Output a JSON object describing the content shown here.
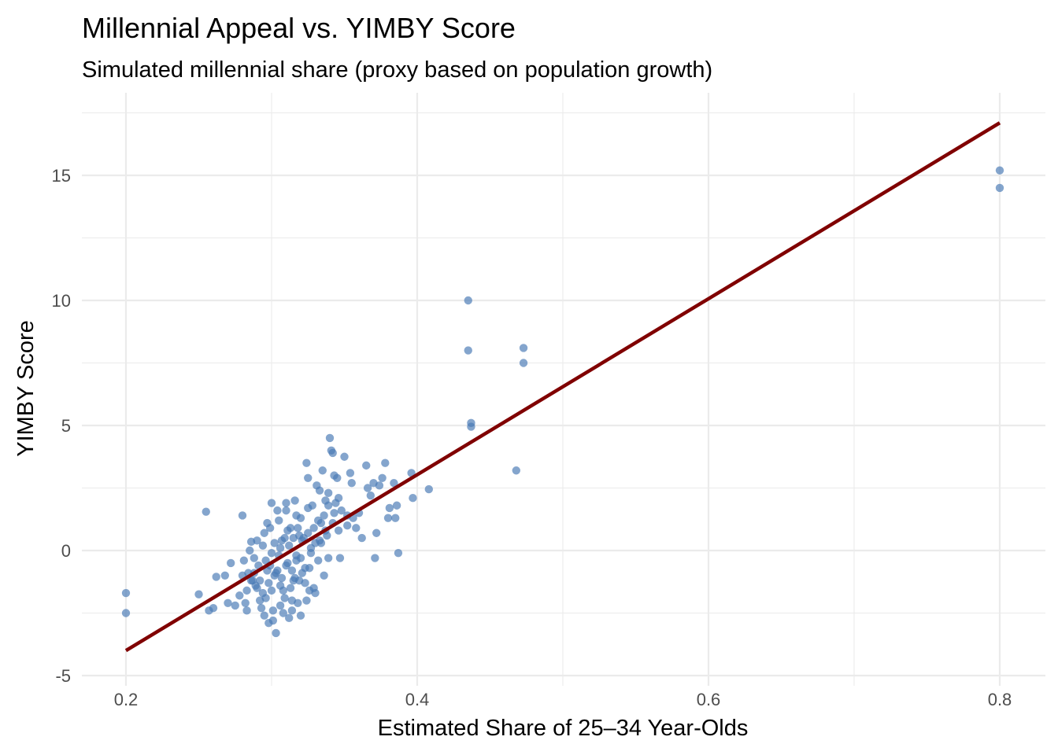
{
  "chart_data": {
    "type": "scatter",
    "title": "Millennial Appeal vs. YIMBY Score",
    "subtitle": "Simulated millennial share (proxy based on population growth)",
    "xlabel": "Estimated Share of 25–34 Year-Olds",
    "ylabel": "YIMBY Score",
    "xlim": [
      0.17,
      0.83
    ],
    "ylim": [
      -5,
      18
    ],
    "x_ticks": [
      0.2,
      0.4,
      0.6,
      0.8
    ],
    "x_tick_labels": [
      "0.2",
      "0.4",
      "0.6",
      "0.8"
    ],
    "y_ticks": [
      -5,
      0,
      5,
      10,
      15
    ],
    "y_tick_labels": [
      "-5",
      "0",
      "5",
      "10",
      "15"
    ],
    "grid": true,
    "legend": "none",
    "colors": {
      "points": "#4a7bb5",
      "trend": "#800000",
      "grid": "#ebebeb"
    },
    "trend_line": {
      "x": [
        0.2,
        0.8
      ],
      "y": [
        -4.0,
        17.1
      ]
    },
    "series": [
      {
        "values": [
          [
            0.2,
            -1.7
          ],
          [
            0.2,
            -2.5
          ],
          [
            0.255,
            1.55
          ],
          [
            0.25,
            -1.75
          ],
          [
            0.257,
            -2.4
          ],
          [
            0.26,
            -2.3
          ],
          [
            0.262,
            -1.05
          ],
          [
            0.27,
            -2.1
          ],
          [
            0.272,
            -0.5
          ],
          [
            0.275,
            -2.2
          ],
          [
            0.268,
            -1.0
          ],
          [
            0.28,
            1.4
          ],
          [
            0.278,
            -1.8
          ],
          [
            0.284,
            -0.9
          ],
          [
            0.286,
            0.35
          ],
          [
            0.288,
            -0.3
          ],
          [
            0.29,
            -1.5
          ],
          [
            0.292,
            -2.0
          ],
          [
            0.283,
            -2.4
          ],
          [
            0.287,
            -1.2
          ],
          [
            0.295,
            0.7
          ],
          [
            0.297,
            -0.8
          ],
          [
            0.298,
            -2.9
          ],
          [
            0.3,
            1.9
          ],
          [
            0.3,
            -0.1
          ],
          [
            0.302,
            -1.0
          ],
          [
            0.303,
            -3.3
          ],
          [
            0.305,
            1.2
          ],
          [
            0.306,
            -2.2
          ],
          [
            0.307,
            0.4
          ],
          [
            0.308,
            -1.6
          ],
          [
            0.31,
            1.6
          ],
          [
            0.311,
            -0.5
          ],
          [
            0.312,
            -2.7
          ],
          [
            0.313,
            0.9
          ],
          [
            0.315,
            -1.2
          ],
          [
            0.316,
            2.0
          ],
          [
            0.317,
            -0.2
          ],
          [
            0.318,
            -2.1
          ],
          [
            0.32,
            1.3
          ],
          [
            0.322,
            0.5
          ],
          [
            0.323,
            -1.3
          ],
          [
            0.324,
            3.5
          ],
          [
            0.325,
            2.9
          ],
          [
            0.326,
            -0.7
          ],
          [
            0.328,
            1.8
          ],
          [
            0.329,
            -1.5
          ],
          [
            0.33,
            0.3
          ],
          [
            0.331,
            2.6
          ],
          [
            0.332,
            -0.4
          ],
          [
            0.334,
            1.1
          ],
          [
            0.335,
            3.2
          ],
          [
            0.336,
            -1.0
          ],
          [
            0.337,
            2.0
          ],
          [
            0.338,
            0.6
          ],
          [
            0.34,
            4.5
          ],
          [
            0.341,
            4.0
          ],
          [
            0.342,
            3.9
          ],
          [
            0.343,
            3.0
          ],
          [
            0.344,
            1.9
          ],
          [
            0.345,
            2.9
          ],
          [
            0.346,
            0.8
          ],
          [
            0.347,
            -0.3
          ],
          [
            0.348,
            1.6
          ],
          [
            0.35,
            3.75
          ],
          [
            0.352,
            1.4
          ],
          [
            0.354,
            3.1
          ],
          [
            0.355,
            2.7
          ],
          [
            0.356,
            1.3
          ],
          [
            0.36,
            1.5
          ],
          [
            0.362,
            0.5
          ],
          [
            0.365,
            3.4
          ],
          [
            0.366,
            2.5
          ],
          [
            0.368,
            2.2
          ],
          [
            0.37,
            2.7
          ],
          [
            0.371,
            -0.3
          ],
          [
            0.372,
            0.7
          ],
          [
            0.374,
            2.6
          ],
          [
            0.376,
            2.9
          ],
          [
            0.378,
            3.5
          ],
          [
            0.38,
            1.3
          ],
          [
            0.381,
            1.7
          ],
          [
            0.384,
            2.7
          ],
          [
            0.385,
            1.3
          ],
          [
            0.386,
            1.8
          ],
          [
            0.387,
            -0.1
          ],
          [
            0.396,
            3.1
          ],
          [
            0.397,
            2.1
          ],
          [
            0.408,
            2.45
          ],
          [
            0.435,
            10.0
          ],
          [
            0.435,
            8.0
          ],
          [
            0.437,
            5.1
          ],
          [
            0.437,
            4.95
          ],
          [
            0.468,
            3.2
          ],
          [
            0.473,
            8.1
          ],
          [
            0.473,
            7.5
          ],
          [
            0.8,
            15.2
          ],
          [
            0.8,
            14.5
          ],
          [
            0.282,
            -2.1
          ],
          [
            0.285,
            0.0
          ],
          [
            0.289,
            -1.4
          ],
          [
            0.291,
            -0.6
          ],
          [
            0.293,
            -2.3
          ],
          [
            0.294,
            0.2
          ],
          [
            0.296,
            -1.9
          ],
          [
            0.299,
            0.9
          ],
          [
            0.301,
            -2.4
          ],
          [
            0.304,
            -0.8
          ],
          [
            0.306,
            0.1
          ],
          [
            0.309,
            -1.9
          ],
          [
            0.311,
            0.8
          ],
          [
            0.314,
            -2.0
          ],
          [
            0.316,
            -1.1
          ],
          [
            0.319,
            0.6
          ],
          [
            0.321,
            -0.9
          ],
          [
            0.324,
            -2.0
          ],
          [
            0.327,
            0.1
          ],
          [
            0.33,
            -1.7
          ],
          [
            0.333,
            0.4
          ],
          [
            0.336,
            1.4
          ],
          [
            0.339,
            -0.3
          ],
          [
            0.343,
            1.5
          ],
          [
            0.288,
            -0.9
          ],
          [
            0.29,
            0.4
          ],
          [
            0.292,
            -1.2
          ],
          [
            0.296,
            -0.4
          ],
          [
            0.298,
            -1.3
          ],
          [
            0.299,
            -0.6
          ],
          [
            0.302,
            0.3
          ],
          [
            0.303,
            -0.9
          ],
          [
            0.305,
            -0.2
          ],
          [
            0.307,
            -1.1
          ],
          [
            0.309,
            0.5
          ],
          [
            0.31,
            -0.6
          ],
          [
            0.312,
            0.2
          ],
          [
            0.314,
            -0.8
          ],
          [
            0.315,
            0.5
          ],
          [
            0.317,
            -0.4
          ],
          [
            0.318,
            0.9
          ],
          [
            0.32,
            -0.3
          ],
          [
            0.321,
            0.4
          ],
          [
            0.323,
            -0.7
          ],
          [
            0.325,
            0.7
          ],
          [
            0.327,
            -0.1
          ],
          [
            0.329,
            0.9
          ],
          [
            0.332,
            1.2
          ],
          [
            0.334,
            0.3
          ],
          [
            0.337,
            0.8
          ],
          [
            0.339,
            1.8
          ],
          [
            0.342,
            1.1
          ],
          [
            0.28,
            -1.0
          ],
          [
            0.281,
            -0.4
          ],
          [
            0.283,
            -1.6
          ],
          [
            0.286,
            -1.2
          ],
          [
            0.294,
            -1.7
          ],
          [
            0.3,
            -1.6
          ],
          [
            0.306,
            -1.4
          ],
          [
            0.313,
            -1.5
          ],
          [
            0.319,
            -1.2
          ],
          [
            0.326,
            -1.6
          ],
          [
            0.297,
            1.1
          ],
          [
            0.304,
            1.6
          ],
          [
            0.31,
            1.9
          ],
          [
            0.317,
            1.4
          ],
          [
            0.325,
            1.7
          ],
          [
            0.333,
            2.4
          ],
          [
            0.339,
            2.3
          ],
          [
            0.346,
            2.1
          ],
          [
            0.352,
            1.0
          ],
          [
            0.358,
            0.9
          ],
          [
            0.295,
            -2.6
          ],
          [
            0.301,
            -2.8
          ],
          [
            0.308,
            -2.5
          ],
          [
            0.314,
            -2.4
          ],
          [
            0.32,
            -2.6
          ]
        ]
      }
    ]
  }
}
